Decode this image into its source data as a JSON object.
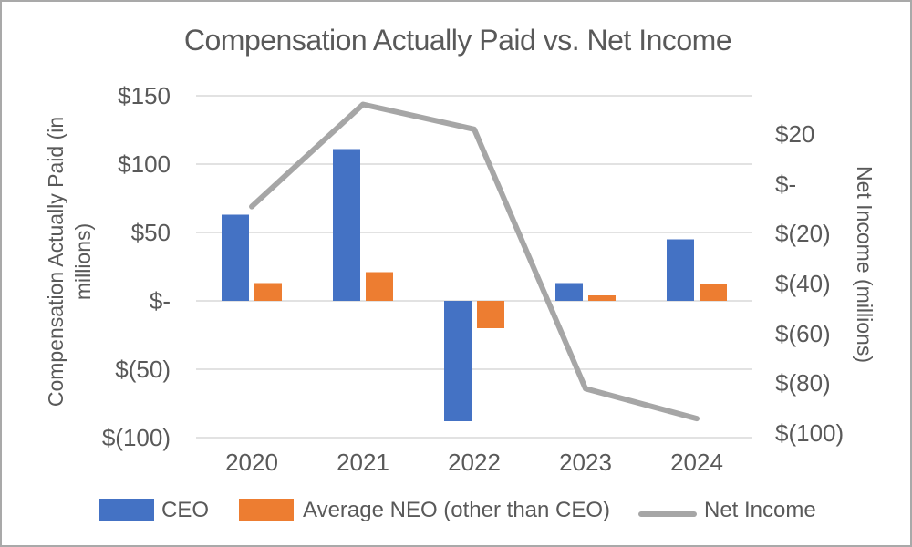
{
  "chart_data": {
    "type": "combo-bar-line",
    "title": "Compensation Actually Paid vs. Net Income",
    "categories": [
      "2020",
      "2021",
      "2022",
      "2023",
      "2024"
    ],
    "series": [
      {
        "name": "CEO",
        "type": "bar",
        "axis": "left",
        "color": "#4472C4",
        "values": [
          63,
          111,
          -88,
          13,
          45
        ]
      },
      {
        "name": "Average NEO (other than CEO)",
        "type": "bar",
        "axis": "left",
        "color": "#ED7D31",
        "values": [
          13,
          21,
          -20,
          4,
          12
        ]
      },
      {
        "name": "Net Income",
        "type": "line",
        "axis": "right",
        "color": "#A6A6A6",
        "values": [
          -9,
          32,
          22,
          -82,
          -94
        ]
      }
    ],
    "left_axis": {
      "title": "Compensation Actually Paid (in millions)",
      "ticks": [
        {
          "label": "$150",
          "value": 150
        },
        {
          "label": "$100",
          "value": 100
        },
        {
          "label": "$50",
          "value": 50
        },
        {
          "label": "$-",
          "value": 0
        },
        {
          "label": "$(50)",
          "value": -50
        },
        {
          "label": "$(100)",
          "value": -100
        }
      ]
    },
    "right_axis": {
      "title": "Net Income (millions)",
      "ticks": [
        {
          "label": "$20",
          "value": 20
        },
        {
          "label": "$-",
          "value": 0
        },
        {
          "label": "$(20)",
          "value": -20
        },
        {
          "label": "$(40)",
          "value": -40
        },
        {
          "label": "$(60)",
          "value": -60
        },
        {
          "label": "$(80)",
          "value": -80
        },
        {
          "label": "$(100)",
          "value": -100
        }
      ]
    },
    "grid": true,
    "legend_position": "bottom",
    "colors": {
      "ceo": "#4472C4",
      "neo": "#ED7D31",
      "net_income": "#A6A6A6",
      "gridline": "#D9D9D9",
      "text": "#595959",
      "border": "#A9A9A9"
    }
  }
}
